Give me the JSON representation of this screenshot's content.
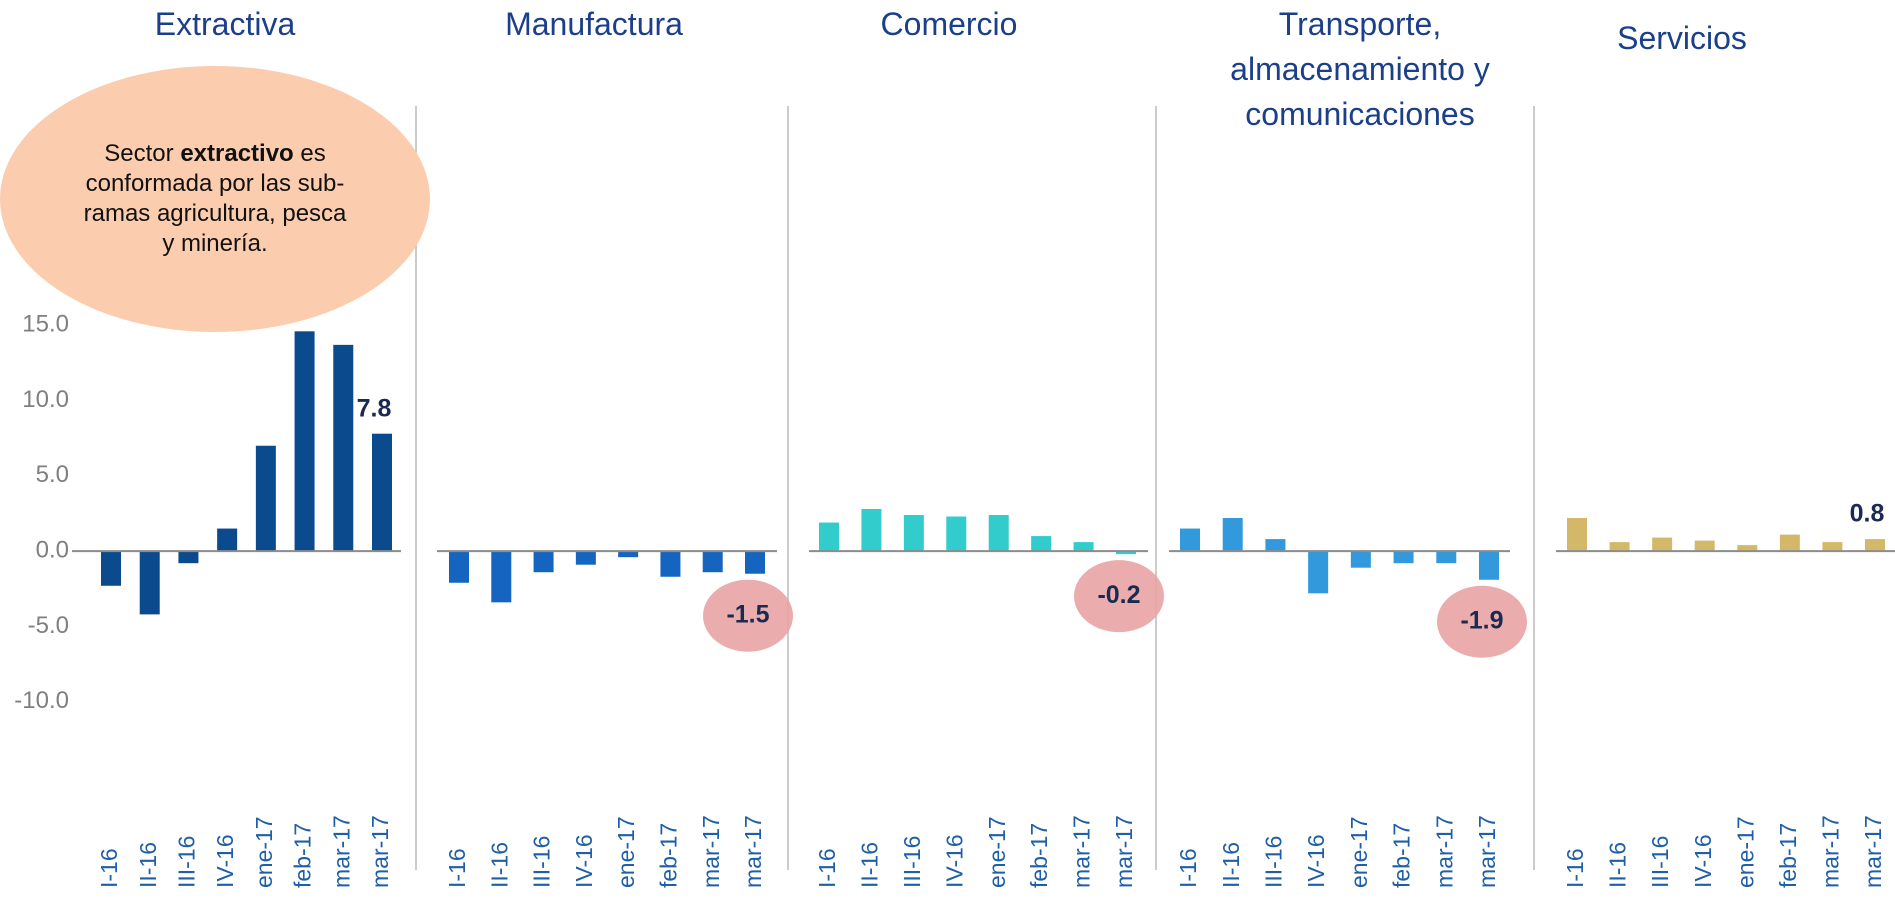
{
  "chart_data": [
    {
      "type": "bar",
      "title": "Extractiva",
      "color": "#0b4a8c",
      "annotation": [
        "Sector ",
        "extractivo",
        " es conformada por las sub-ramas agricultura, pesca y minería."
      ],
      "categories": [
        "I-16",
        "II-16",
        "III-16",
        "IV-16",
        "ene-17",
        "feb-17",
        "mar-17",
        "mar-17"
      ],
      "values": [
        -2.3,
        -4.2,
        -0.8,
        1.5,
        7.0,
        14.6,
        13.7,
        7.8
      ],
      "labeled": [
        7
      ],
      "ylim": [
        -15,
        20
      ],
      "yticks": [
        {
          "value": 15,
          "label": "15.0"
        },
        {
          "value": 10,
          "label": "10.0"
        },
        {
          "value": 5,
          "label": "5.0"
        },
        {
          "value": 0,
          "label": "0.0"
        },
        {
          "value": -5,
          "label": "-5.0"
        },
        {
          "value": -10,
          "label": "-10.0"
        }
      ]
    },
    {
      "type": "bar",
      "title": "Manufactura",
      "color": "#1565c0",
      "highlight_color": "#e8a3a3",
      "categories": [
        "I-16",
        "II-16",
        "III-16",
        "IV-16",
        "ene-17",
        "feb-17",
        "mar-17",
        "mar-17"
      ],
      "values": [
        -2.1,
        -3.4,
        -1.4,
        -0.9,
        -0.4,
        -1.7,
        -1.4,
        -1.5
      ],
      "labeled": [
        7
      ],
      "ylim": [
        -15,
        20
      ]
    },
    {
      "type": "bar",
      "title": "Comercio",
      "color": "#33cccc",
      "highlight_color": "#e8a3a3",
      "categories": [
        "I-16",
        "II-16",
        "III-16",
        "IV-16",
        "ene-17",
        "feb-17",
        "mar-17",
        "mar-17"
      ],
      "values": [
        1.9,
        2.8,
        2.4,
        2.3,
        2.4,
        1.0,
        0.6,
        -0.2
      ],
      "labeled": [
        7
      ],
      "ylim": [
        -15,
        20
      ]
    },
    {
      "type": "bar",
      "title": "Transporte, almacenamiento y comunicaciones",
      "color": "#3399dd",
      "highlight_color": "#e8a3a3",
      "categories": [
        "I-16",
        "II-16",
        "III-16",
        "IV-16",
        "ene-17",
        "feb-17",
        "mar-17",
        "mar-17"
      ],
      "values": [
        1.5,
        2.2,
        0.8,
        -2.8,
        -1.1,
        -0.8,
        -0.8,
        -1.9
      ],
      "labeled": [
        7
      ],
      "ylim": [
        -15,
        20
      ]
    },
    {
      "type": "bar",
      "title": "Servicios",
      "color": "#d4b86a",
      "categories": [
        "I-16",
        "II-16",
        "III-16",
        "IV-16",
        "ene-17",
        "feb-17",
        "mar-17",
        "mar-17"
      ],
      "values": [
        2.2,
        0.6,
        0.9,
        0.7,
        0.4,
        1.1,
        0.6,
        0.8
      ],
      "labeled": [
        7
      ],
      "ylim": [
        -15,
        20
      ]
    }
  ]
}
